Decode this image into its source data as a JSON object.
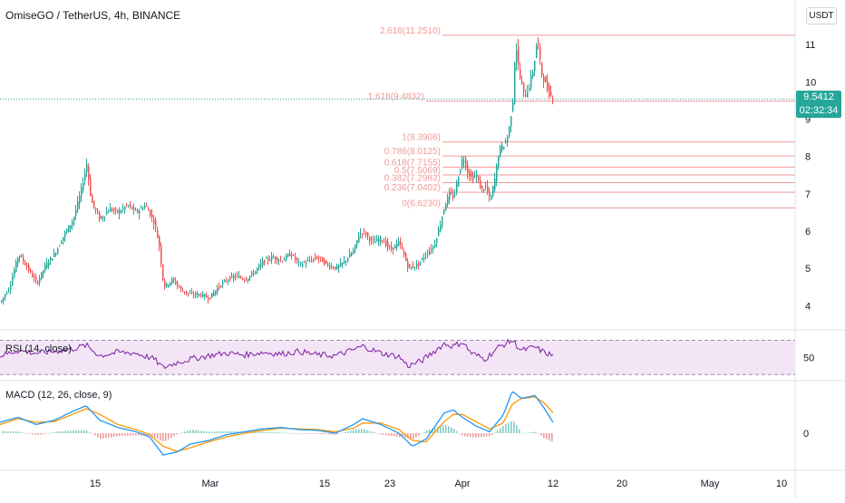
{
  "title": "OmiseGO / TetherUS, 4h, BINANCE",
  "currency": "USDT",
  "last_price": "9.5412",
  "countdown": "02:32:34",
  "rsi_label": "RSI (14, close)",
  "macd_label": "MACD (12, 26, close, 9)",
  "colors": {
    "up": "#26a69a",
    "down": "#ef5350",
    "fib": "#ef9a9a",
    "rsi": "#7b1fa2",
    "rsi_band": "#f3e5f5",
    "macd": "#2196f3",
    "signal": "#ff9800",
    "last_price_line": "#26a69a"
  },
  "chart_data": {
    "type": "candlestick",
    "price_ylim": [
      3.4,
      12.0
    ],
    "price_ticks": [
      "4",
      "5",
      "6",
      "7",
      "8",
      "9",
      "10",
      "11"
    ],
    "x_ticks": [
      "15",
      "Mar",
      "15",
      "23",
      "Apr",
      "12",
      "20",
      "May",
      "10"
    ],
    "price_path": [
      [
        0,
        4.1
      ],
      [
        10,
        4.5
      ],
      [
        20,
        5.4
      ],
      [
        30,
        5.0
      ],
      [
        40,
        4.6
      ],
      [
        50,
        5.1
      ],
      [
        60,
        5.4
      ],
      [
        70,
        5.9
      ],
      [
        80,
        6.3
      ],
      [
        88,
        7.0
      ],
      [
        95,
        7.8
      ],
      [
        100,
        6.8
      ],
      [
        110,
        6.3
      ],
      [
        120,
        6.6
      ],
      [
        130,
        6.5
      ],
      [
        140,
        6.7
      ],
      [
        150,
        6.5
      ],
      [
        160,
        6.7
      ],
      [
        170,
        6.2
      ],
      [
        175,
        5.6
      ],
      [
        180,
        4.5
      ],
      [
        190,
        4.7
      ],
      [
        200,
        4.4
      ],
      [
        210,
        4.3
      ],
      [
        220,
        4.3
      ],
      [
        230,
        4.2
      ],
      [
        240,
        4.5
      ],
      [
        250,
        4.7
      ],
      [
        260,
        4.8
      ],
      [
        270,
        4.7
      ],
      [
        280,
        4.9
      ],
      [
        290,
        5.2
      ],
      [
        300,
        5.3
      ],
      [
        310,
        5.2
      ],
      [
        320,
        5.4
      ],
      [
        330,
        5.1
      ],
      [
        340,
        5.2
      ],
      [
        350,
        5.3
      ],
      [
        360,
        5.1
      ],
      [
        370,
        5.0
      ],
      [
        380,
        5.2
      ],
      [
        390,
        5.5
      ],
      [
        395,
        5.9
      ],
      [
        400,
        6.0
      ],
      [
        410,
        5.7
      ],
      [
        420,
        5.8
      ],
      [
        430,
        5.5
      ],
      [
        440,
        5.7
      ],
      [
        450,
        5.0
      ],
      [
        460,
        5.1
      ],
      [
        470,
        5.4
      ],
      [
        478,
        5.6
      ],
      [
        485,
        6.2
      ],
      [
        490,
        6.7
      ],
      [
        495,
        7.0
      ],
      [
        500,
        6.9
      ],
      [
        505,
        7.5
      ],
      [
        510,
        8.0
      ],
      [
        515,
        7.6
      ],
      [
        520,
        7.4
      ],
      [
        525,
        7.5
      ],
      [
        530,
        7.1
      ],
      [
        535,
        7.2
      ],
      [
        540,
        6.8
      ],
      [
        545,
        7.4
      ],
      [
        550,
        8.2
      ],
      [
        555,
        8.3
      ],
      [
        560,
        8.6
      ],
      [
        565,
        9.5
      ],
      [
        568,
        11.1
      ],
      [
        572,
        10.2
      ],
      [
        578,
        9.6
      ],
      [
        583,
        9.9
      ],
      [
        588,
        10.4
      ],
      [
        592,
        11.2
      ],
      [
        596,
        10.3
      ],
      [
        600,
        10.0
      ],
      [
        605,
        9.7
      ],
      [
        610,
        9.54
      ]
    ],
    "fib_levels": [
      {
        "label": "2.618(11.2510)",
        "value": 11.251
      },
      {
        "label": "1.618(9.4832)",
        "value": 9.4832
      },
      {
        "label": "1(8.3908)",
        "value": 8.3908
      },
      {
        "label": "0.786(8.0125)",
        "value": 8.0125
      },
      {
        "label": "0.618(7.7155)",
        "value": 7.7155
      },
      {
        "label": "0.5(7.5069)",
        "value": 7.5069
      },
      {
        "label": "0.382(7.2983)",
        "value": 7.2983
      },
      {
        "label": "0.236(7.0402)",
        "value": 7.0402
      },
      {
        "label": "0(6.6230)",
        "value": 6.623
      }
    ],
    "rsi": {
      "label_tick": "50",
      "path": [
        [
          0,
          52
        ],
        [
          20,
          58
        ],
        [
          40,
          55
        ],
        [
          60,
          57
        ],
        [
          80,
          60
        ],
        [
          95,
          64
        ],
        [
          110,
          52
        ],
        [
          130,
          56
        ],
        [
          150,
          55
        ],
        [
          170,
          48
        ],
        [
          180,
          38
        ],
        [
          195,
          44
        ],
        [
          210,
          48
        ],
        [
          230,
          52
        ],
        [
          250,
          55
        ],
        [
          270,
          53
        ],
        [
          290,
          56
        ],
        [
          310,
          54
        ],
        [
          330,
          57
        ],
        [
          350,
          53
        ],
        [
          370,
          52
        ],
        [
          390,
          59
        ],
        [
          400,
          63
        ],
        [
          420,
          55
        ],
        [
          440,
          51
        ],
        [
          450,
          40
        ],
        [
          465,
          46
        ],
        [
          480,
          58
        ],
        [
          490,
          66
        ],
        [
          500,
          63
        ],
        [
          510,
          68
        ],
        [
          520,
          55
        ],
        [
          535,
          48
        ],
        [
          550,
          62
        ],
        [
          565,
          70
        ],
        [
          575,
          58
        ],
        [
          590,
          62
        ],
        [
          600,
          56
        ],
        [
          610,
          52
        ]
      ]
    },
    "macd": {
      "label_tick": "0",
      "macd_path": [
        [
          0,
          0.15
        ],
        [
          20,
          0.22
        ],
        [
          40,
          0.12
        ],
        [
          60,
          0.18
        ],
        [
          80,
          0.3
        ],
        [
          95,
          0.38
        ],
        [
          110,
          0.18
        ],
        [
          130,
          0.08
        ],
        [
          150,
          0.02
        ],
        [
          165,
          -0.05
        ],
        [
          180,
          -0.3
        ],
        [
          195,
          -0.26
        ],
        [
          210,
          -0.15
        ],
        [
          230,
          -0.1
        ],
        [
          250,
          -0.02
        ],
        [
          270,
          0.02
        ],
        [
          290,
          0.06
        ],
        [
          310,
          0.08
        ],
        [
          330,
          0.05
        ],
        [
          350,
          0.04
        ],
        [
          370,
          0.0
        ],
        [
          390,
          0.12
        ],
        [
          400,
          0.2
        ],
        [
          420,
          0.12
        ],
        [
          440,
          0.0
        ],
        [
          455,
          -0.18
        ],
        [
          470,
          -0.08
        ],
        [
          490,
          0.28
        ],
        [
          500,
          0.32
        ],
        [
          510,
          0.22
        ],
        [
          525,
          0.1
        ],
        [
          540,
          0.02
        ],
        [
          555,
          0.25
        ],
        [
          565,
          0.58
        ],
        [
          575,
          0.48
        ],
        [
          590,
          0.52
        ],
        [
          600,
          0.35
        ],
        [
          610,
          0.15
        ]
      ],
      "signal_path": [
        [
          0,
          0.12
        ],
        [
          20,
          0.2
        ],
        [
          40,
          0.15
        ],
        [
          60,
          0.16
        ],
        [
          80,
          0.26
        ],
        [
          95,
          0.34
        ],
        [
          110,
          0.26
        ],
        [
          130,
          0.12
        ],
        [
          150,
          0.05
        ],
        [
          165,
          -0.02
        ],
        [
          180,
          -0.18
        ],
        [
          195,
          -0.25
        ],
        [
          210,
          -0.2
        ],
        [
          230,
          -0.12
        ],
        [
          250,
          -0.05
        ],
        [
          270,
          0.0
        ],
        [
          290,
          0.04
        ],
        [
          310,
          0.07
        ],
        [
          330,
          0.06
        ],
        [
          350,
          0.05
        ],
        [
          370,
          0.02
        ],
        [
          390,
          0.07
        ],
        [
          400,
          0.14
        ],
        [
          420,
          0.14
        ],
        [
          440,
          0.05
        ],
        [
          455,
          -0.1
        ],
        [
          470,
          -0.12
        ],
        [
          490,
          0.16
        ],
        [
          500,
          0.26
        ],
        [
          510,
          0.26
        ],
        [
          525,
          0.16
        ],
        [
          540,
          0.06
        ],
        [
          555,
          0.14
        ],
        [
          565,
          0.4
        ],
        [
          575,
          0.48
        ],
        [
          590,
          0.5
        ],
        [
          600,
          0.42
        ],
        [
          610,
          0.28
        ]
      ]
    }
  }
}
